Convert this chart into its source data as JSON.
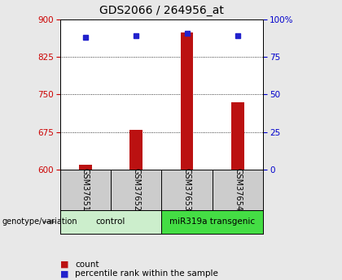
{
  "title": "GDS2066 / 264956_at",
  "samples": [
    "GSM37651",
    "GSM37652",
    "GSM37653",
    "GSM37654"
  ],
  "count_values": [
    610,
    680,
    875,
    735
  ],
  "percentile_values": [
    88,
    89,
    91,
    89
  ],
  "ylim_left": [
    600,
    900
  ],
  "ylim_right": [
    0,
    100
  ],
  "yticks_left": [
    600,
    675,
    750,
    825,
    900
  ],
  "yticks_right": [
    0,
    25,
    50,
    75,
    100
  ],
  "ytick_labels_right": [
    "0",
    "25",
    "50",
    "75",
    "100%"
  ],
  "bar_color": "#bb1111",
  "dot_color": "#2222cc",
  "groups": [
    {
      "label": "control",
      "samples": [
        0,
        1
      ],
      "color": "#cceecc"
    },
    {
      "label": "miR319a transgenic",
      "samples": [
        2,
        3
      ],
      "color": "#44dd44"
    }
  ],
  "genotype_label": "genotype/variation",
  "legend_count_label": "count",
  "legend_percentile_label": "percentile rank within the sample",
  "title_fontsize": 10,
  "axis_label_color_left": "#cc0000",
  "axis_label_color_right": "#0000cc",
  "bar_color_dark": "#aa0000",
  "dot_color_dark": "#0000aa",
  "plot_bg_color": "#ffffff",
  "outer_bg_color": "#e8e8e8",
  "sample_box_color": "#cccccc",
  "bar_width": 0.25
}
